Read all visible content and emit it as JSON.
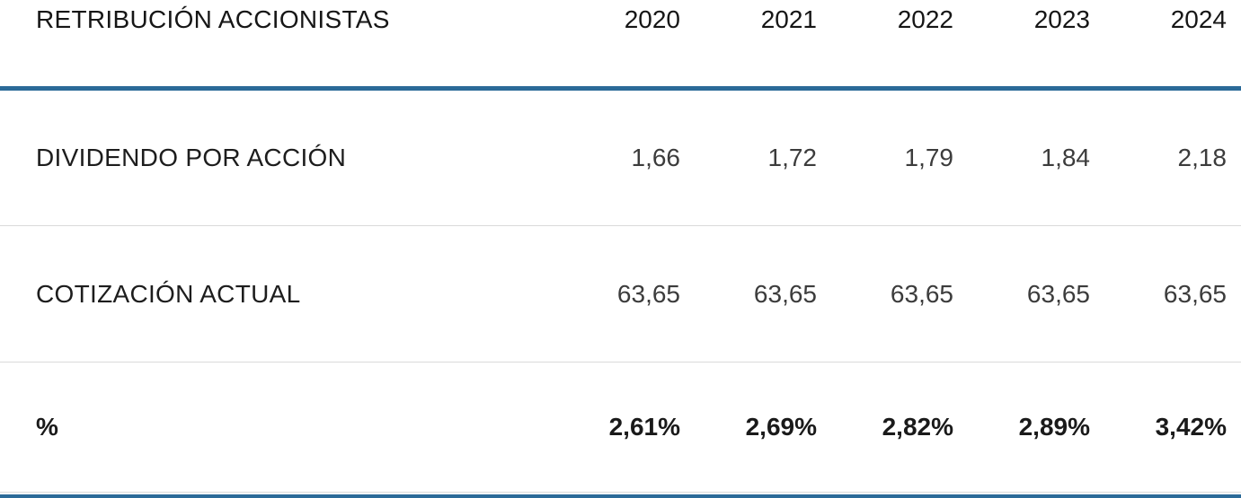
{
  "colors": {
    "accent_blue": "#2b6a98",
    "separator_gray": "#dadada",
    "heading_text": "#161616",
    "value_text": "#3c3c3c"
  },
  "table": {
    "title": "RETRIBUCIÓN ACCIONISTAS",
    "years": [
      "2020",
      "2021",
      "2022",
      "2023",
      "2024"
    ],
    "rows": [
      {
        "label": "DIVIDENDO POR ACCIÓN",
        "values": [
          "1,66",
          "1,72",
          "1,79",
          "1,84",
          "2,18"
        ]
      },
      {
        "label": "COTIZACIÓN ACTUAL",
        "values": [
          "63,65",
          "63,65",
          "63,65",
          "63,65",
          "63,65"
        ]
      },
      {
        "label": "%",
        "values": [
          "2,61%",
          "2,69%",
          "2,82%",
          "2,89%",
          "3,42%"
        ]
      }
    ]
  },
  "chart_data": {
    "type": "table",
    "title": "RETRIBUCIÓN ACCIONISTAS",
    "categories": [
      "2020",
      "2021",
      "2022",
      "2023",
      "2024"
    ],
    "series": [
      {
        "name": "DIVIDENDO POR ACCIÓN",
        "values": [
          1.66,
          1.72,
          1.79,
          1.84,
          2.18
        ]
      },
      {
        "name": "COTIZACIÓN ACTUAL",
        "values": [
          63.65,
          63.65,
          63.65,
          63.65,
          63.65
        ]
      },
      {
        "name": "%",
        "values": [
          2.61,
          2.69,
          2.82,
          2.89,
          3.42
        ],
        "unit": "%"
      }
    ],
    "number_format": "es-ES decimal comma",
    "layout": "rows as series, years as columns, blue rule under header and at table bottom, thin gray separators between rows, bold last row"
  }
}
